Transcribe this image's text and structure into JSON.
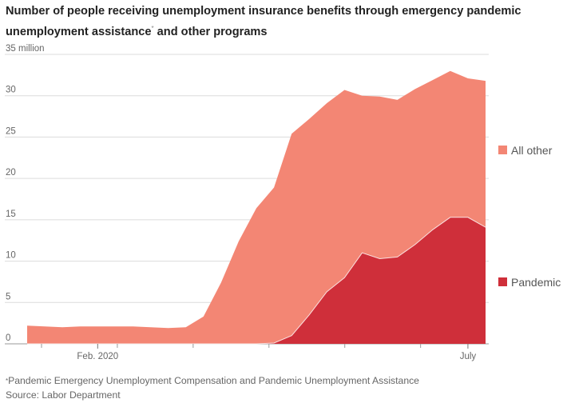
{
  "title": "Number of people receiving unemployment insurance benefits through emergency pandemic unemployment assistance* and other programs",
  "title_line1": "Number of people receiving unemployment insurance benefits through emergency pandemic",
  "title_line2": "unemployment assistance",
  "title_mark": "*",
  "title_line2_end": " and other programs",
  "footnote_mark": "*",
  "footnote": "Pandemic Emergency Unemployment Compensation and Pandemic Unemployment Assistance",
  "source": "Source: Labor Department",
  "colors": {
    "all_other": "#f38674",
    "pandemic": "#cf2f3a",
    "grid": "#dcdcdc"
  },
  "chart_data": {
    "type": "area",
    "stacked": true,
    "title": "Number of people receiving unemployment insurance benefits through emergency pandemic unemployment assistance and other programs",
    "ylabel": "million",
    "ylim": [
      0,
      35
    ],
    "y_ticks": [
      0,
      5,
      10,
      15,
      20,
      25,
      30,
      35
    ],
    "y_tick_labels": [
      "0",
      "5",
      "10",
      "15",
      "20",
      "25",
      "30",
      "35 million"
    ],
    "x_tick_labels": [
      {
        "label": "Feb. 2020",
        "week": 4
      },
      {
        "label": "July",
        "week": 25
      }
    ],
    "weeks": [
      0,
      1,
      2,
      3,
      4,
      5,
      6,
      7,
      8,
      9,
      10,
      11,
      12,
      13,
      14,
      15,
      16,
      17,
      18,
      19,
      20,
      21,
      22,
      23,
      24,
      25,
      26
    ],
    "series": [
      {
        "name": "Pandemic",
        "values": [
          0,
          0,
          0,
          0,
          0,
          0,
          0,
          0,
          0,
          0,
          0,
          0,
          0,
          0,
          0.1,
          1,
          3.5,
          6.3,
          8,
          11,
          10.3,
          10.5,
          12,
          13.8,
          15.3,
          15.3,
          14.1
        ]
      },
      {
        "name": "All other",
        "values": [
          2.2,
          2.1,
          2,
          2.1,
          2.1,
          2.1,
          2.1,
          2,
          1.9,
          2,
          3.3,
          7.4,
          12.4,
          16.4,
          18.8,
          24.4,
          23.7,
          22.8,
          22.7,
          19,
          19.6,
          19,
          18.8,
          18.1,
          17.7,
          16.8,
          17.7
        ]
      }
    ],
    "legend": [
      "All other",
      "Pandemic"
    ],
    "legend_position": "right"
  }
}
